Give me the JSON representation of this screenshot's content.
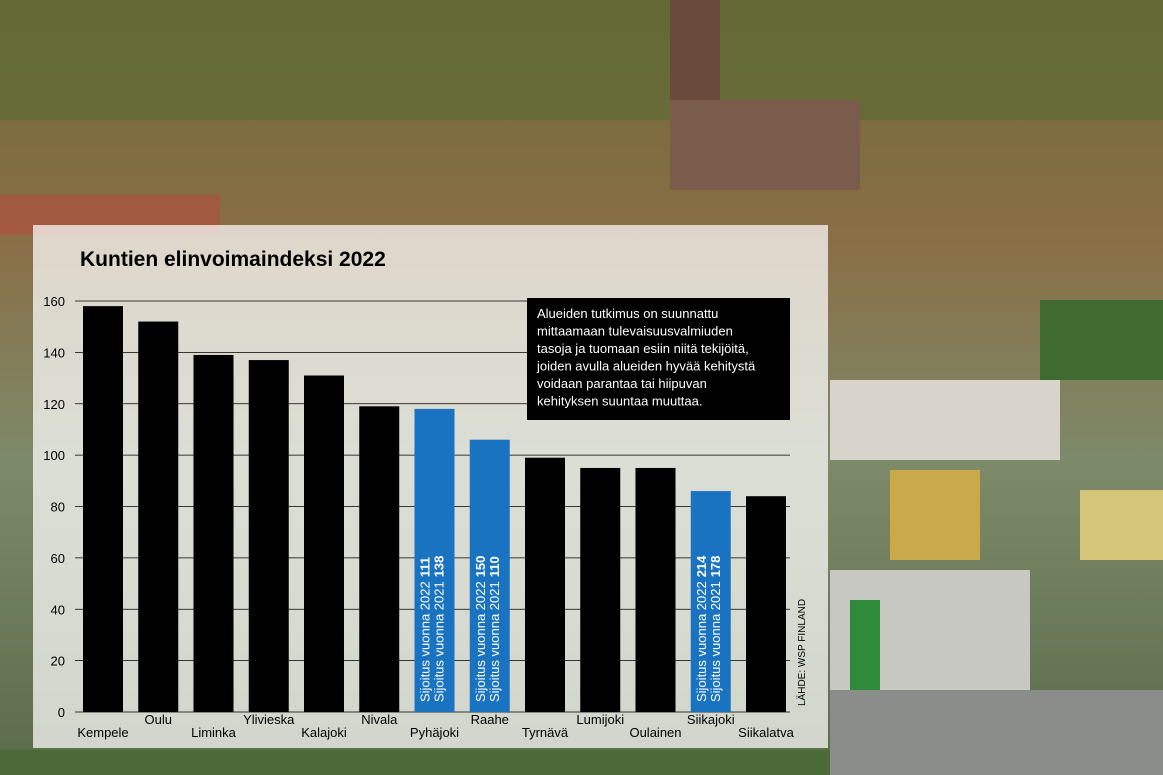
{
  "chart_data": {
    "type": "bar",
    "title": "Kuntien elinvoimaindeksi 2022",
    "categories": [
      "Kempele",
      "Oulu",
      "Liminka",
      "Ylivieska",
      "Kalajoki",
      "Nivala",
      "Pyhäjoki",
      "Raahe",
      "Tyrnävä",
      "Lumijoki",
      "Oulainen",
      "Siikajoki",
      "Siikalatva"
    ],
    "values": [
      158,
      152,
      139,
      137,
      131,
      119,
      118,
      106,
      99,
      95,
      95,
      86,
      84
    ],
    "colors": [
      "#000000",
      "#000000",
      "#000000",
      "#000000",
      "#000000",
      "#000000",
      "#1a73c0",
      "#1a73c0",
      "#000000",
      "#000000",
      "#000000",
      "#1a73c0",
      "#000000"
    ],
    "bar_texts": [
      null,
      null,
      null,
      null,
      null,
      null,
      [
        {
          "label": "Sijoitus vuonna 2022",
          "rank": 111
        },
        {
          "label": "Sijoitus vuonna 2021",
          "rank": 138
        }
      ],
      [
        {
          "label": "Sijoitus vuonna 2022",
          "rank": 150
        },
        {
          "label": "Sijoitus vuonna 2021",
          "rank": 110
        }
      ],
      null,
      null,
      null,
      [
        {
          "label": "Sijoitus vuonna 2022",
          "rank": 214
        },
        {
          "label": "Sijoitus vuonna 2021",
          "rank": 178
        }
      ],
      null
    ],
    "ylim": [
      0,
      160
    ],
    "yticks": [
      0,
      20,
      40,
      60,
      80,
      100,
      120,
      140,
      160
    ],
    "grid": true,
    "annotation_lines": [
      "Alueiden tutkimus on suunnattu",
      "mittaamaan tulevaisuusvalmiuden",
      "tasoja ja tuomaan esiin niitä tekijöitä,",
      "joiden avulla alueiden hyvää kehitystä",
      "voidaan parantaa tai hiipuvan",
      "kehityksen suuntaa muuttaa."
    ],
    "source": "LÄHDE: WSP FINLAND"
  }
}
